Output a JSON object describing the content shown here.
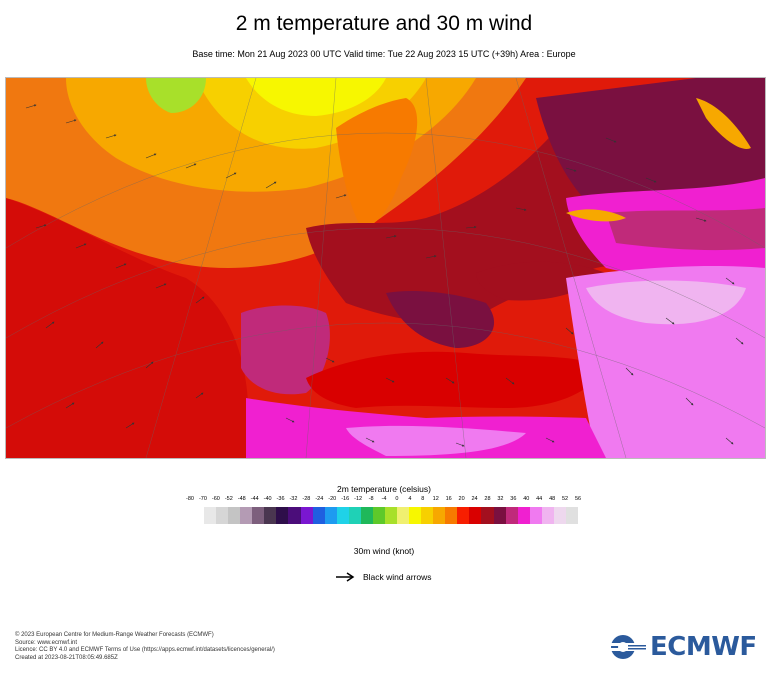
{
  "title": "2 m temperature and 30 m wind",
  "subtitle": "Base time: Mon 21 Aug 2023 00 UTC Valid time: Tue 22 Aug 2023 15 UTC (+39h) Area : Europe",
  "legend": {
    "title": "2m temperature (celsius)",
    "ticks": [
      "-80",
      "-70",
      "-60",
      "-52",
      "-48",
      "-44",
      "-40",
      "-36",
      "-32",
      "-28",
      "-24",
      "-20",
      "-16",
      "-12",
      "-8",
      "-4",
      "0",
      "4",
      "8",
      "12",
      "16",
      "20",
      "24",
      "28",
      "32",
      "36",
      "40",
      "44",
      "48",
      "52",
      "56"
    ],
    "colors": [
      "#e8e8e8",
      "#d6d6d6",
      "#c4c4c4",
      "#b49bb4",
      "#7d5f7d",
      "#4a3650",
      "#2e0e4a",
      "#4b0d7a",
      "#7a17d1",
      "#1f5fe0",
      "#1e9bf0",
      "#1fd2e8",
      "#1fd1b6",
      "#1fb85a",
      "#5ec92a",
      "#a8e02a",
      "#f0f070",
      "#f7f700",
      "#f7d000",
      "#f7a800",
      "#f77a00",
      "#f71e00",
      "#d90000",
      "#a30f1e",
      "#7a1040",
      "#c02a7a",
      "#f020d0",
      "#f07af0",
      "#f0b4f0",
      "#eed8ee",
      "#e0e0e0"
    ]
  },
  "wind": {
    "title": "30m wind (knot)",
    "arrow_label": "Black wind arrows",
    "arrow_icon": "arrow-right-icon"
  },
  "footer": {
    "line1": "© 2023 European Centre for Medium-Range Weather Forecasts (ECMWF)",
    "line2": "Source: www.ecmwf.int",
    "line3": "Licence: CC BY 4.0 and ECMWF Terms of Use (https://apps.ecmwf.int/datasets/licences/general/)",
    "line4": "Created at 2023-08-21T08:05:49.685Z"
  },
  "logo": {
    "text": "ECMWF",
    "color": "#2b5a9c"
  }
}
